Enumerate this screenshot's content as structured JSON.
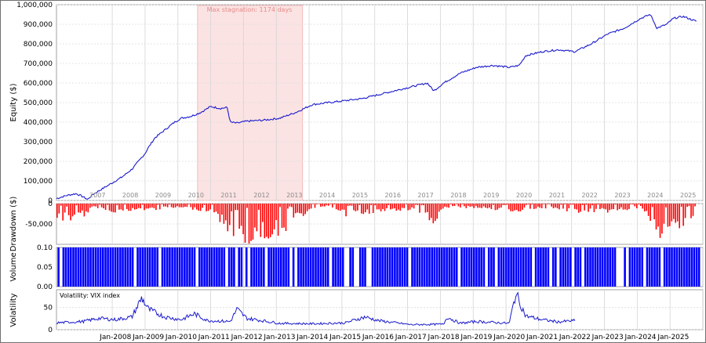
{
  "chart_data": [
    {
      "type": "line",
      "name": "equity",
      "ylabel": "Equity ($)",
      "ylim": [
        0,
        1000000
      ],
      "yticks": [
        "0",
        "100,000",
        "200,000",
        "300,000",
        "400,000",
        "500,000",
        "600,000",
        "700,000",
        "800,000",
        "900,000",
        "1,000,000"
      ],
      "year_labels": [
        "2007",
        "2008",
        "2009",
        "2010",
        "2011",
        "2012",
        "2013",
        "2014",
        "2015",
        "2016",
        "2017",
        "2018",
        "2019",
        "2020",
        "2021",
        "2022",
        "2023",
        "2024",
        "2025"
      ],
      "stagnation": {
        "label": "Max stagnation: 1174 days",
        "from": 2010.5,
        "to": 2013.7
      },
      "color": "#1a1acc",
      "grid": true,
      "points": [
        [
          2006.2,
          10000
        ],
        [
          2006.5,
          25000
        ],
        [
          2006.8,
          35000
        ],
        [
          2007.0,
          20000
        ],
        [
          2007.15,
          5000
        ],
        [
          2007.3,
          30000
        ],
        [
          2007.6,
          60000
        ],
        [
          2007.9,
          90000
        ],
        [
          2008.2,
          120000
        ],
        [
          2008.5,
          160000
        ],
        [
          2008.7,
          200000
        ],
        [
          2008.9,
          240000
        ],
        [
          2009.0,
          270000
        ],
        [
          2009.2,
          320000
        ],
        [
          2009.5,
          360000
        ],
        [
          2009.8,
          400000
        ],
        [
          2010.0,
          420000
        ],
        [
          2010.3,
          430000
        ],
        [
          2010.6,
          450000
        ],
        [
          2010.9,
          480000
        ],
        [
          2011.2,
          470000
        ],
        [
          2011.4,
          475000
        ],
        [
          2011.5,
          400000
        ],
        [
          2011.7,
          395000
        ],
        [
          2012.0,
          405000
        ],
        [
          2012.5,
          410000
        ],
        [
          2013.0,
          420000
        ],
        [
          2013.5,
          450000
        ],
        [
          2014.0,
          490000
        ],
        [
          2014.5,
          500000
        ],
        [
          2015.0,
          510000
        ],
        [
          2015.5,
          520000
        ],
        [
          2016.0,
          540000
        ],
        [
          2016.5,
          560000
        ],
        [
          2017.0,
          580000
        ],
        [
          2017.5,
          600000
        ],
        [
          2017.7,
          560000
        ],
        [
          2018.0,
          600000
        ],
        [
          2018.5,
          650000
        ],
        [
          2019.0,
          680000
        ],
        [
          2019.5,
          690000
        ],
        [
          2020.0,
          680000
        ],
        [
          2020.3,
          690000
        ],
        [
          2020.5,
          740000
        ],
        [
          2021.0,
          760000
        ],
        [
          2021.5,
          770000
        ],
        [
          2022.0,
          760000
        ],
        [
          2022.5,
          800000
        ],
        [
          2023.0,
          850000
        ],
        [
          2023.5,
          880000
        ],
        [
          2024.0,
          930000
        ],
        [
          2024.3,
          950000
        ],
        [
          2024.5,
          880000
        ],
        [
          2024.8,
          900000
        ],
        [
          2025.0,
          930000
        ],
        [
          2025.3,
          940000
        ],
        [
          2025.7,
          915000
        ]
      ]
    },
    {
      "type": "area",
      "name": "drawdown",
      "ylabel": "Drawdown ($)",
      "ylim": [
        -100000,
        0
      ],
      "yticks": [
        "-50,000",
        "0"
      ],
      "color": "#ff0000",
      "points": [
        [
          2006.5,
          -40000
        ],
        [
          2007.0,
          -30000
        ],
        [
          2007.3,
          -10000
        ],
        [
          2008.0,
          -20000
        ],
        [
          2009.0,
          -15000
        ],
        [
          2010.0,
          -10000
        ],
        [
          2011.0,
          -20000
        ],
        [
          2011.5,
          -85000
        ],
        [
          2012.0,
          -90000
        ],
        [
          2012.5,
          -80000
        ],
        [
          2013.0,
          -70000
        ],
        [
          2013.5,
          -40000
        ],
        [
          2014.0,
          -10000
        ],
        [
          2014.5,
          -5000
        ],
        [
          2015.0,
          -30000
        ],
        [
          2016.0,
          -20000
        ],
        [
          2017.0,
          -15000
        ],
        [
          2017.7,
          -45000
        ],
        [
          2018.0,
          -10000
        ],
        [
          2019.0,
          -10000
        ],
        [
          2020.0,
          -20000
        ],
        [
          2021.0,
          -10000
        ],
        [
          2022.0,
          -20000
        ],
        [
          2023.0,
          -20000
        ],
        [
          2024.0,
          -10000
        ],
        [
          2024.5,
          -80000
        ],
        [
          2025.0,
          -60000
        ],
        [
          2025.7,
          -30000
        ]
      ]
    },
    {
      "type": "bar",
      "name": "volume",
      "ylabel": "Volume",
      "ylim": [
        0,
        0.1
      ],
      "yticks": [
        "0.00",
        "0.05",
        "0.10"
      ],
      "color": "#0000ff",
      "value": 0.1
    },
    {
      "type": "line",
      "name": "volatility",
      "ylabel": "Volatility",
      "legend": "Volatility: VIX index",
      "ylim": [
        0,
        90
      ],
      "yticks": [
        "0",
        "50"
      ],
      "x_ticks": [
        "Jan-2008",
        "Jan-2009",
        "Jan-2010",
        "Jan-2011",
        "Jan-2012",
        "Jan-2013",
        "Jan-2014",
        "Jan-2015",
        "Jan-2016",
        "Jan-2017",
        "Jan-2018",
        "Jan-2019",
        "Jan-2020",
        "Jan-2021",
        "Jan-2022",
        "Jan-2023",
        "Jan-2024",
        "Jan-2025"
      ],
      "color": "#1a1acc",
      "points": [
        [
          2006.2,
          15
        ],
        [
          2007.0,
          18
        ],
        [
          2007.5,
          25
        ],
        [
          2008.0,
          22
        ],
        [
          2008.5,
          28
        ],
        [
          2008.8,
          70
        ],
        [
          2009.0,
          45
        ],
        [
          2009.5,
          28
        ],
        [
          2010.0,
          22
        ],
        [
          2010.4,
          35
        ],
        [
          2010.8,
          20
        ],
        [
          2011.5,
          18
        ],
        [
          2011.7,
          45
        ],
        [
          2012.0,
          25
        ],
        [
          2013.0,
          14
        ],
        [
          2014.0,
          13
        ],
        [
          2015.0,
          15
        ],
        [
          2015.6,
          28
        ],
        [
          2016.0,
          20
        ],
        [
          2017.0,
          11
        ],
        [
          2018.0,
          12
        ],
        [
          2018.1,
          28
        ],
        [
          2018.5,
          14
        ],
        [
          2019.0,
          18
        ],
        [
          2020.0,
          14
        ],
        [
          2020.2,
          80
        ],
        [
          2020.5,
          30
        ],
        [
          2021.0,
          22
        ],
        [
          2021.5,
          17
        ],
        [
          2022.0,
          20
        ]
      ]
    }
  ]
}
